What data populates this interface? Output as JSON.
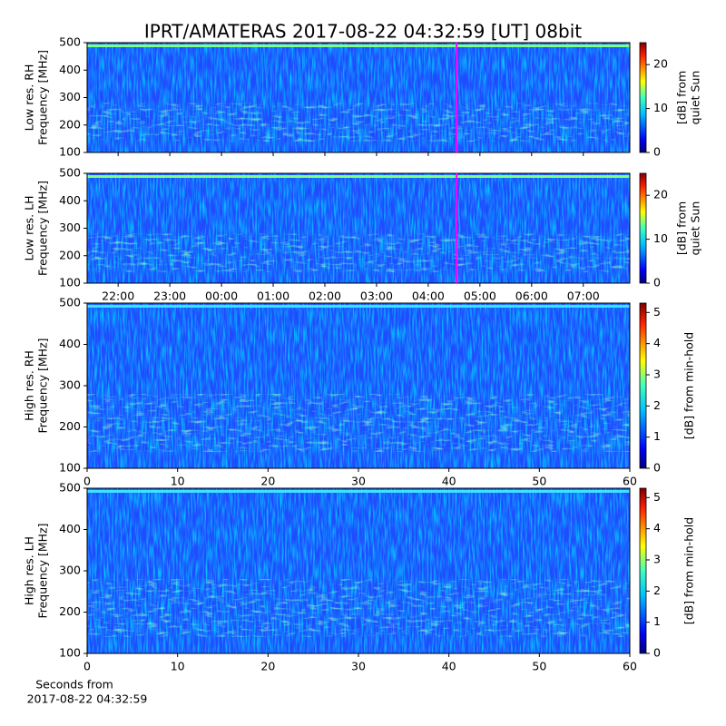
{
  "title": "IPRT/AMATERAS 2017-08-22 04:32:59 [UT]   08bit",
  "chart_data": [
    {
      "type": "heatmap",
      "ylabel": [
        "Low res. RH",
        "Frequency [MHz]"
      ],
      "ylim": [
        100,
        500
      ],
      "yticks": [
        100,
        200,
        300,
        400,
        500
      ],
      "xlim": [
        21.4,
        31.9
      ],
      "colormap": "jet",
      "clim": [
        0,
        25
      ],
      "cticks": [
        0,
        10,
        20
      ],
      "colorbar_label": [
        "[dB] from",
        "quiet Sun"
      ],
      "marker_x": 28.55,
      "marker_color": "#ff00ff"
    },
    {
      "type": "heatmap",
      "ylabel": [
        "Low res. LH",
        "Frequency [MHz]"
      ],
      "ylim": [
        100,
        500
      ],
      "yticks": [
        100,
        200,
        300,
        400,
        500
      ],
      "xlim": [
        21.4,
        31.9
      ],
      "xticks": [
        {
          "value": 22,
          "label": "22:00"
        },
        {
          "value": 23,
          "label": "23:00"
        },
        {
          "value": 24,
          "label": "00:00"
        },
        {
          "value": 25,
          "label": "01:00"
        },
        {
          "value": 26,
          "label": "02:00"
        },
        {
          "value": 27,
          "label": "03:00"
        },
        {
          "value": 28,
          "label": "04:00"
        },
        {
          "value": 29,
          "label": "05:00"
        },
        {
          "value": 30,
          "label": "06:00"
        },
        {
          "value": 31,
          "label": "07:00"
        }
      ],
      "colormap": "jet",
      "clim": [
        0,
        25
      ],
      "cticks": [
        0,
        10,
        20
      ],
      "colorbar_label": [
        "[dB] from",
        "quiet Sun"
      ],
      "marker_x": 28.55,
      "marker_color": "#ff00ff"
    },
    {
      "type": "heatmap",
      "ylabel": [
        "High res. RH",
        "Frequency [MHz]"
      ],
      "ylim": [
        100,
        500
      ],
      "yticks": [
        100,
        200,
        300,
        400,
        500
      ],
      "xlim": [
        0,
        60
      ],
      "xticks": [
        0,
        10,
        20,
        30,
        40,
        50,
        60
      ],
      "colormap": "jet",
      "clim": [
        0,
        5.3
      ],
      "cticks": [
        0,
        1,
        2,
        3,
        4,
        5
      ],
      "colorbar_label": [
        "[dB] from min-hold"
      ]
    },
    {
      "type": "heatmap",
      "ylabel": [
        "High res. LH",
        "Frequency [MHz]"
      ],
      "ylim": [
        100,
        500
      ],
      "yticks": [
        100,
        200,
        300,
        400,
        500
      ],
      "xlim": [
        0,
        60
      ],
      "xticks": [
        0,
        10,
        20,
        30,
        40,
        50,
        60
      ],
      "xlabel": [
        "Seconds from",
        "2017-08-22 04:32:59"
      ],
      "colormap": "jet",
      "clim": [
        0,
        5.3
      ],
      "cticks": [
        0,
        1,
        2,
        3,
        4,
        5
      ],
      "colorbar_label": [
        "[dB] from min-hold"
      ]
    }
  ]
}
